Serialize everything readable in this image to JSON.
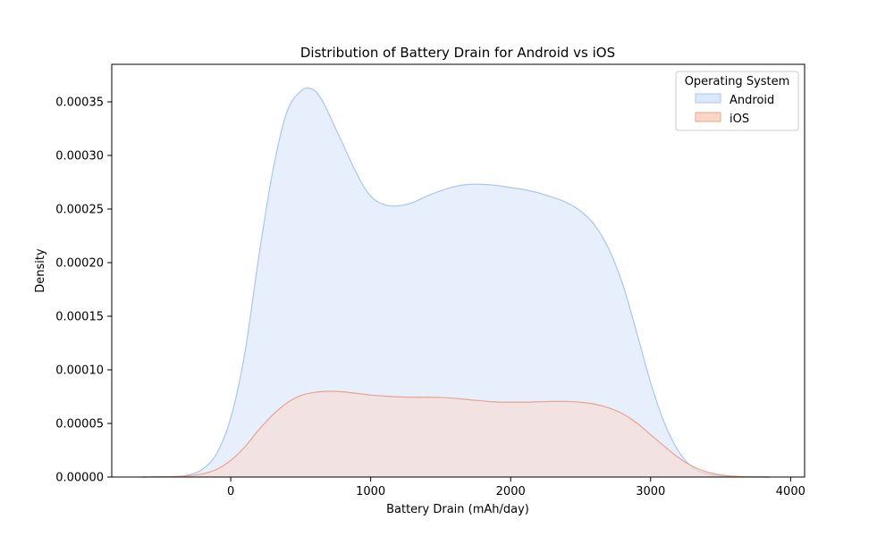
{
  "chart_data": {
    "type": "area",
    "title": "Distribution of Battery Drain for Android vs iOS",
    "xlabel": "Battery Drain (mAh/day)",
    "ylabel": "Density",
    "xlim": [
      -850,
      4100
    ],
    "ylim": [
      0,
      0.000385
    ],
    "xticks": [
      0,
      1000,
      2000,
      3000,
      4000
    ],
    "yticks": [
      0.0,
      5e-05,
      0.0001,
      0.00015,
      0.0002,
      0.00025,
      0.0003,
      0.00035
    ],
    "xtick_labels": [
      "0",
      "1000",
      "2000",
      "3000",
      "4000"
    ],
    "ytick_labels": [
      "0.00000",
      "0.00005",
      "0.00010",
      "0.00015",
      "0.00020",
      "0.00025",
      "0.00030",
      "0.00035"
    ],
    "grid": false,
    "legend": {
      "title": "Operating System",
      "placement": "upper right"
    },
    "series": [
      {
        "name": "Android",
        "fill": "#dbe7fb",
        "stroke": "#a9c7f2",
        "x": [
          -630,
          -400,
          -300,
          -200,
          -100,
          0,
          100,
          200,
          300,
          400,
          500,
          580,
          650,
          750,
          900,
          1000,
          1100,
          1200,
          1300,
          1400,
          1500,
          1600,
          1700,
          1800,
          1900,
          2000,
          2100,
          2200,
          2300,
          2400,
          2500,
          2600,
          2700,
          2800,
          2900,
          3000,
          3100,
          3200,
          3300,
          3400,
          3500,
          3600,
          3700,
          3850
        ],
        "y": [
          0,
          5e-07,
          2e-06,
          7.5e-06,
          2.2e-05,
          5.5e-05,
          0.000115,
          0.000205,
          0.000285,
          0.00034,
          0.00036,
          0.000362,
          0.000352,
          0.000325,
          0.000283,
          0.000262,
          0.000254,
          0.000253,
          0.000256,
          0.000262,
          0.000267,
          0.000271,
          0.000273,
          0.000273,
          0.000272,
          0.00027,
          0.000268,
          0.000265,
          0.000261,
          0.000256,
          0.000248,
          0.000235,
          0.000213,
          0.00018,
          0.000135,
          8.8e-05,
          5e-05,
          2.4e-05,
          9e-06,
          3e-06,
          9e-07,
          2e-07,
          4e-08,
          0
        ]
      },
      {
        "name": "iOS",
        "fill": "#fbd5c5",
        "stroke": "#e8a48d",
        "x": [
          -630,
          -400,
          -300,
          -200,
          -100,
          0,
          100,
          200,
          300,
          400,
          500,
          600,
          700,
          800,
          900,
          1000,
          1100,
          1200,
          1300,
          1400,
          1500,
          1600,
          1700,
          1800,
          1900,
          2000,
          2100,
          2200,
          2300,
          2400,
          2500,
          2600,
          2700,
          2800,
          2900,
          3000,
          3100,
          3200,
          3300,
          3400,
          3500,
          3600,
          3700,
          3850
        ],
        "y": [
          0,
          4e-07,
          1.2e-06,
          3e-06,
          7.2e-06,
          1.55e-05,
          2.8e-05,
          4.4e-05,
          5.8e-05,
          6.9e-05,
          7.6e-05,
          7.9e-05,
          8e-05,
          7.95e-05,
          7.8e-05,
          7.65e-05,
          7.55e-05,
          7.48e-05,
          7.45e-05,
          7.45e-05,
          7.42e-05,
          7.35e-05,
          7.22e-05,
          7.1e-05,
          7e-05,
          6.98e-05,
          6.98e-05,
          7.02e-05,
          7.05e-05,
          7.05e-05,
          6.98e-05,
          6.8e-05,
          6.45e-05,
          5.9e-05,
          5.05e-05,
          3.95e-05,
          2.85e-05,
          1.8e-05,
          1e-05,
          4.8e-06,
          2e-06,
          7e-07,
          2e-07,
          0
        ]
      }
    ]
  }
}
